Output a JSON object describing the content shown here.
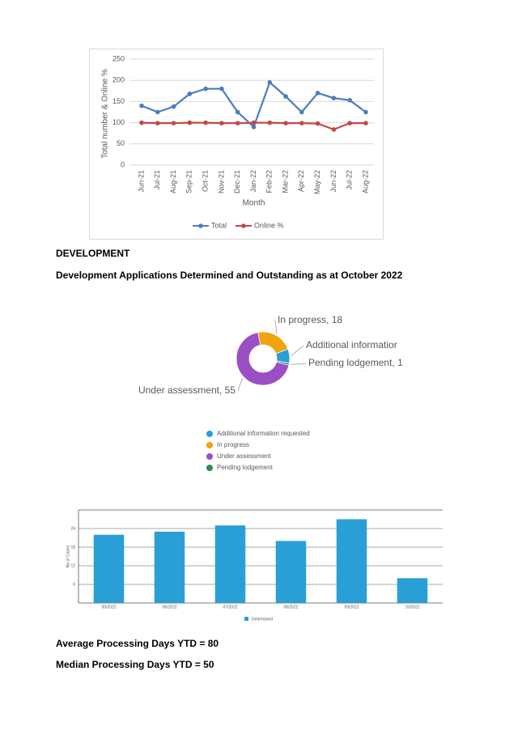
{
  "headings": {
    "section": "DEVELOPMENT",
    "subtitle": "Development Applications Determined and Outstanding as at October 2022"
  },
  "stats": [
    "Average Processing Days YTD = 80",
    "Median Processing Days YTD = 50"
  ],
  "chart_data": [
    {
      "type": "line",
      "categories": [
        "Jun-21",
        "Jul-21",
        "Aug-21",
        "Sep-21",
        "Oct-21",
        "Nov-21",
        "Dec-21",
        "Jan-22",
        "Feb-22",
        "Mar-22",
        "Apr-22",
        "May-22",
        "Jun-22",
        "Jul-22",
        "Aug-22"
      ],
      "series": [
        {
          "name": "Total",
          "color": "#4a7ebb",
          "values": [
            140,
            125,
            138,
            168,
            180,
            180,
            125,
            90,
            195,
            162,
            125,
            170,
            158,
            153,
            125
          ]
        },
        {
          "name": "Online %",
          "color": "#be4b48",
          "values": [
            100,
            99,
            99,
            100,
            100,
            99,
            99,
            100,
            100,
            99,
            99,
            98,
            84,
            99,
            99
          ]
        }
      ],
      "ylim": [
        0,
        250
      ],
      "yticks": [
        0,
        50,
        100,
        150,
        200,
        250
      ],
      "grid": true,
      "x_label": "Month",
      "y_label": "Total number & Online %",
      "legend": "bottom"
    },
    {
      "type": "pie",
      "donut": true,
      "categories": [
        "Additional information requested",
        "In progress",
        "Under assessment",
        "Pending lodgement"
      ],
      "values": [
        7,
        18,
        55,
        1
      ],
      "value_labels": [
        "Additional informatior",
        "In progress, 18",
        "Under assessment, 55",
        "Pending lodgement, 1"
      ],
      "colors": [
        "#2a9fd6",
        "#f0a30a",
        "#9b4fc4",
        "#2e8b57"
      ],
      "legend": "bottom"
    },
    {
      "type": "bar",
      "categories": [
        "05/2022",
        "06/2022",
        "07/2022",
        "08/2022",
        "09/2022",
        "10/2022"
      ],
      "series": [
        {
          "name": "Determined",
          "color": "#2a9fd6",
          "values": [
            22,
            23,
            25,
            20,
            27,
            8
          ]
        }
      ],
      "ylim": [
        0,
        30
      ],
      "yticks": [
        6,
        12,
        18,
        24
      ],
      "grid": true,
      "y_label": "No of Cases",
      "legend": "bottom"
    }
  ]
}
